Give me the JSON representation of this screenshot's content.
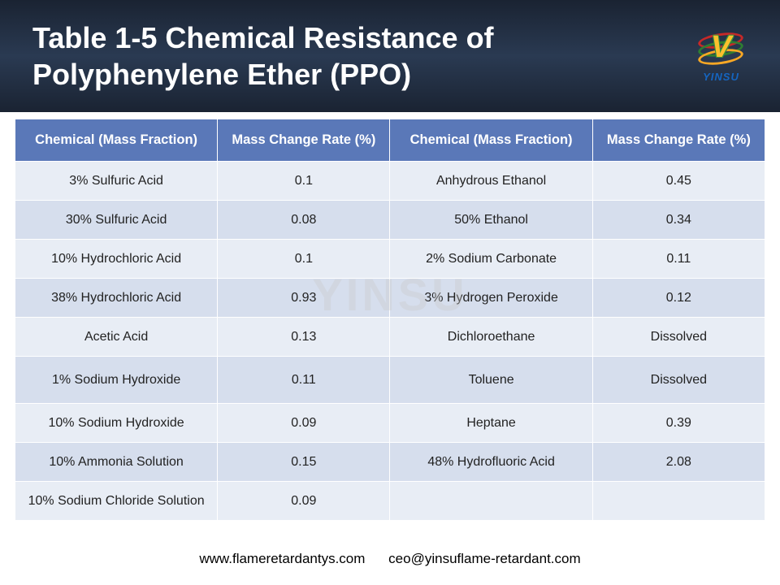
{
  "header": {
    "title": "Table 1-5 Chemical Resistance of Polyphenylene Ether (PPO)",
    "logo_letter": "V",
    "logo_text": "YINSU"
  },
  "watermark": "YINSU",
  "table": {
    "columns": [
      "Chemical (Mass Fraction)",
      "Mass Change Rate (%)",
      "Chemical (Mass Fraction)",
      "Mass Change Rate (%)"
    ],
    "col_widths_pct": [
      27,
      23,
      27,
      23
    ],
    "header_bg": "#5a78b8",
    "header_fg": "#ffffff",
    "row_bg_odd": "#e8edf5",
    "row_bg_even": "#d6deed",
    "font_size_header": 16.5,
    "font_size_cell": 16,
    "rows": [
      [
        "3% Sulfuric Acid",
        "0.1",
        "Anhydrous Ethanol",
        "0.45"
      ],
      [
        "30% Sulfuric Acid",
        "0.08",
        "50% Ethanol",
        "0.34"
      ],
      [
        "10% Hydrochloric Acid",
        "0.1",
        "2% Sodium Carbonate",
        "0.11"
      ],
      [
        "38% Hydrochloric Acid",
        "0.93",
        "3% Hydrogen Peroxide",
        "0.12"
      ],
      [
        "Acetic Acid",
        "0.13",
        "Dichloroethane",
        "Dissolved"
      ],
      [
        "1% Sodium Hydroxide",
        "0.11",
        "Toluene",
        "Dissolved"
      ],
      [
        "10% Sodium Hydroxide",
        "0.09",
        "Heptane",
        "0.39"
      ],
      [
        "10% Ammonia Solution",
        "0.15",
        "48% Hydrofluoric Acid",
        "2.08"
      ],
      [
        "10% Sodium Chloride Solution",
        "0.09",
        "",
        ""
      ]
    ],
    "tall_row_indices": [
      5
    ]
  },
  "footer": {
    "website": "www.flameretardantys.com",
    "email": "ceo@yinsuflame-retardant.com"
  },
  "colors": {
    "header_gradient_top": "#1a2332",
    "header_gradient_mid": "#2a3a52",
    "page_bg": "#ffffff",
    "logo_ring_red": "#c62828",
    "logo_ring_green": "#2e7d32",
    "logo_ring_yellow": "#f9a825",
    "logo_v_fill": "#fbc02d",
    "logo_text_color": "#1565c0"
  }
}
